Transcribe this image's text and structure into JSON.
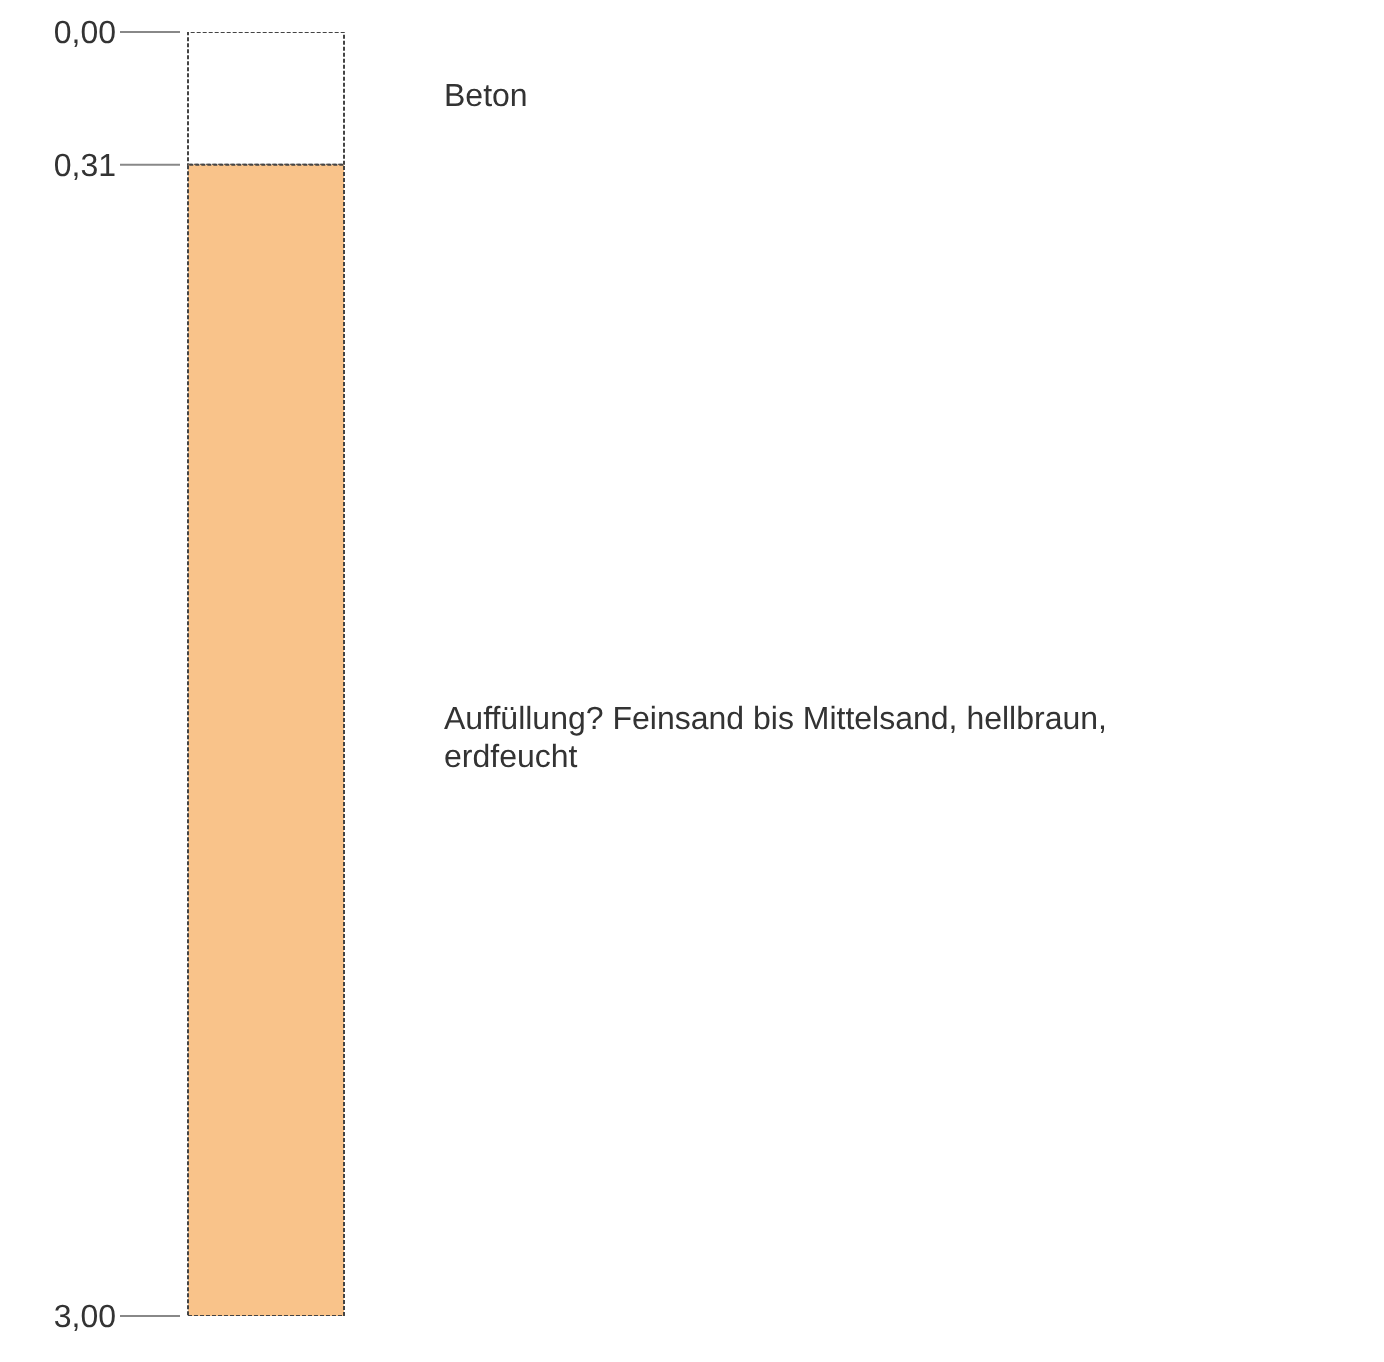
{
  "chart_data": {
    "type": "bar",
    "stacked": true,
    "categories": [
      null
    ],
    "series": [
      {
        "name": "Beton",
        "color": "#ffffff",
        "values": [
          0.31
        ]
      },
      {
        "name": "Auffüllung? Feinsand bis Mittelsand, hellbraun, erdfeucht",
        "color": "#f9c38a",
        "values": [
          2.69
        ]
      }
    ],
    "ylim": [
      3,
      0
    ],
    "yticks": [
      {
        "value": 0,
        "label": "0,00"
      },
      {
        "value": 0.31,
        "label": "0,31"
      },
      {
        "value": 3,
        "label": "3,00"
      }
    ],
    "tick_labels": "y"
  }
}
